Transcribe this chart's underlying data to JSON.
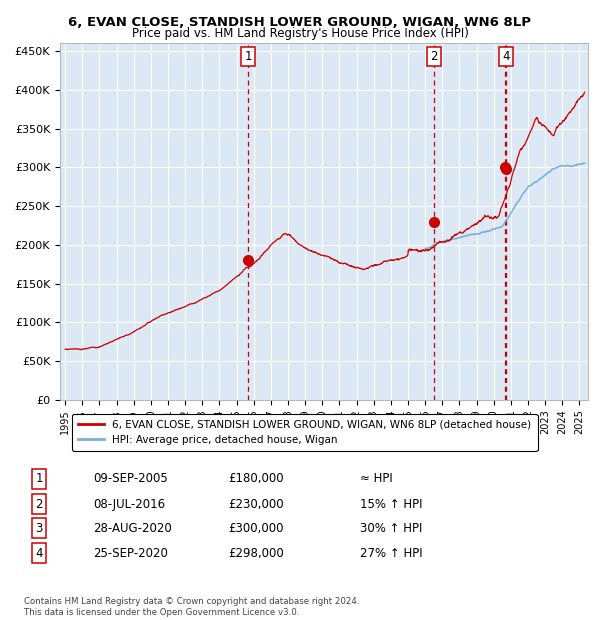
{
  "title1": "6, EVAN CLOSE, STANDISH LOWER GROUND, WIGAN, WN6 8LP",
  "title2": "Price paid vs. HM Land Registry's House Price Index (HPI)",
  "legend_line1": "6, EVAN CLOSE, STANDISH LOWER GROUND, WIGAN, WN6 8LP (detached house)",
  "legend_line2": "HPI: Average price, detached house, Wigan",
  "footer": "Contains HM Land Registry data © Crown copyright and database right 2024.\nThis data is licensed under the Open Government Licence v3.0.",
  "transactions": [
    {
      "num": "1",
      "date": "09-SEP-2005",
      "price": "£180,000",
      "rel": "≈ HPI",
      "date_x": 2005.69,
      "price_y": 180000
    },
    {
      "num": "2",
      "date": "08-JUL-2016",
      "price": "£230,000",
      "rel": "15% ↑ HPI",
      "date_x": 2016.52,
      "price_y": 230000
    },
    {
      "num": "3",
      "date": "28-AUG-2020",
      "price": "£300,000",
      "rel": "30% ↑ HPI",
      "date_x": 2020.66,
      "price_y": 300000
    },
    {
      "num": "4",
      "date": "25-SEP-2020",
      "price": "£298,000",
      "rel": "27% ↑ HPI",
      "date_x": 2020.74,
      "price_y": 298000
    }
  ],
  "chart_trans_nums": [
    "1",
    "2",
    "4"
  ],
  "chart_trans_years": [
    2005.69,
    2016.52,
    2020.74
  ],
  "ylim": [
    0,
    460000
  ],
  "ytick_vals": [
    0,
    50000,
    100000,
    150000,
    200000,
    250000,
    300000,
    350000,
    400000,
    450000
  ],
  "ytick_labels": [
    "£0",
    "£50K",
    "£100K",
    "£150K",
    "£200K",
    "£250K",
    "£300K",
    "£350K",
    "£400K",
    "£450K"
  ],
  "xlim_start": 1994.7,
  "xlim_end": 2025.5,
  "bg_color": "#dce9f5",
  "grid_color": "#ffffff",
  "red_color": "#cc0000",
  "blue_color": "#7bafd4",
  "dash_color": "#cc0000",
  "marker_color": "#cc0000",
  "marker_size": 8
}
